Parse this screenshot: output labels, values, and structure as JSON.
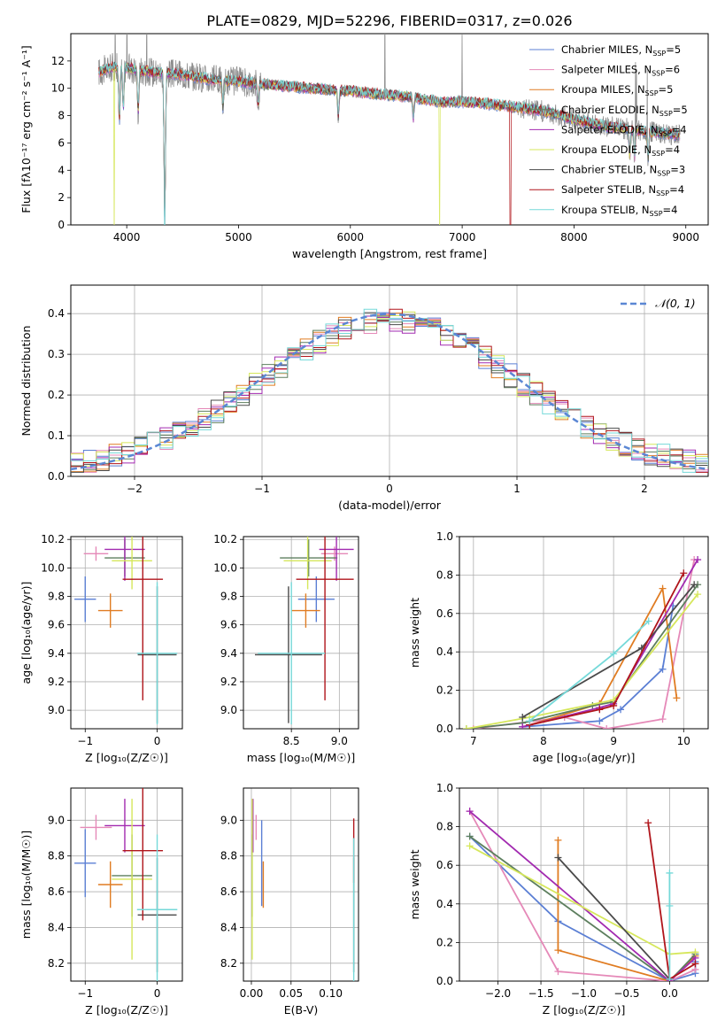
{
  "figure": {
    "title": "PLATE=0829, MJD=52296, FIBERID=0317, z=0.026"
  },
  "colors": {
    "Chabrier MILES": "#5b7fd4",
    "Salpeter MILES": "#e589b8",
    "Kroupa MILES": "#e07c22",
    "Chabrier ELODIE": "#5d7f5e",
    "Salpeter ELODIE": "#a22ab0",
    "Kroupa ELODIE": "#d6e75b",
    "Chabrier STELIB": "#4a4a4a",
    "Salpeter STELIB": "#b0151b",
    "Kroupa STELIB": "#75d9d9",
    "data": "#8c8c8c",
    "normal": "#5b87d4"
  },
  "chart_data": [
    {
      "id": "spectrum",
      "type": "line",
      "xlabel": "wavelength [Angstrom, rest frame]",
      "ylabel": "Flux [fλ10⁻¹⁷ erg cm⁻² s⁻¹ A⁻¹]",
      "xlim": [
        3500,
        9200
      ],
      "ylim": [
        0,
        14
      ],
      "xticks": [
        "4000",
        "5000",
        "6000",
        "7000",
        "8000",
        "9000"
      ],
      "yticks": [
        "0",
        "2",
        "4",
        "6",
        "8",
        "10",
        "12"
      ],
      "legend_position": "top-right",
      "legend": [
        "Chabrier MILES, N_SSP=5",
        "Salpeter MILES, N_SSP=6",
        "Kroupa MILES, N_SSP=5",
        "Chabrier ELODIE, N_SSP=5",
        "Salpeter ELODIE, N_SSP=4",
        "Kroupa ELODIE, N_SSP=4",
        "Chabrier STELIB, N_SSP=3",
        "Salpeter STELIB, N_SSP=4",
        "Kroupa STELIB, N_SSP=4"
      ],
      "continuum": {
        "x": [
          3750,
          3900,
          4000,
          4200,
          4500,
          4800,
          5000,
          5200,
          5500,
          5800,
          6000,
          6200,
          6500,
          6800,
          7000,
          7200,
          7400,
          7600,
          7800,
          8000,
          8300,
          8600,
          8900
        ],
        "y": [
          11.2,
          11.6,
          11.5,
          11.2,
          11.0,
          10.6,
          10.5,
          10.3,
          10.1,
          9.9,
          9.8,
          9.6,
          9.4,
          9.0,
          9.0,
          8.9,
          8.7,
          8.5,
          8.2,
          7.7,
          7.2,
          6.9,
          6.6
        ]
      },
      "absorption_dips": [
        {
          "x": 3934,
          "depth": 4
        },
        {
          "x": 3969,
          "depth": 3
        },
        {
          "x": 4102,
          "depth": 3
        },
        {
          "x": 4340,
          "depth": 11
        },
        {
          "x": 4861,
          "depth": 2
        },
        {
          "x": 5175,
          "depth": 1.5
        },
        {
          "x": 5893,
          "depth": 2
        },
        {
          "x": 6563,
          "depth": 1.5
        },
        {
          "x": 8498,
          "depth": 2
        },
        {
          "x": 8542,
          "depth": 2
        },
        {
          "x": 8662,
          "depth": 2
        }
      ],
      "model_dropouts": [
        {
          "series": "Kroupa ELODIE",
          "x": 3890
        },
        {
          "series": "Kroupa ELODIE",
          "x": 6800
        },
        {
          "series": "Salpeter STELIB",
          "x": 7430
        },
        {
          "series": "Kroupa STELIB",
          "x": 4340
        }
      ],
      "x_range_models": [
        3750,
        8950
      ]
    },
    {
      "id": "residuals",
      "type": "histogram",
      "xlabel": "(data-model)/error",
      "ylabel": "Normed distribution",
      "xlim": [
        -2.5,
        2.5
      ],
      "ylim": [
        0,
        0.47
      ],
      "xticks": [
        "−2",
        "−1",
        "0",
        "1",
        "2"
      ],
      "yticks": [
        "0.0",
        "0.1",
        "0.2",
        "0.3",
        "0.4"
      ],
      "bin_width": 0.1,
      "legend_position": "top-right",
      "legend": [
        "𝒩(0, 1)"
      ],
      "normal_mean": 0,
      "normal_sigma": 1
    },
    {
      "id": "age-vs-Z",
      "type": "errorbar",
      "xlabel": "Z [log₁₀(Z/Z☉)]",
      "ylabel": "age  [log₁₀(age/yr)]",
      "xlim": [
        -1.2,
        0.35
      ],
      "ylim": [
        8.87,
        10.22
      ],
      "xticks": [
        -1,
        0
      ],
      "yticks": [
        9.0,
        9.2,
        9.4,
        9.6,
        9.8,
        10.0,
        10.2
      ],
      "points": [
        {
          "series": "Chabrier MILES",
          "x": -1.0,
          "y": 9.78,
          "xerr": 0.15,
          "yerr": 0.16
        },
        {
          "series": "Salpeter MILES",
          "x": -0.85,
          "y": 10.1,
          "xerr": 0.17,
          "yerr": 0.05
        },
        {
          "series": "Kroupa MILES",
          "x": -0.65,
          "y": 9.7,
          "xerr": 0.17,
          "yerr": 0.12
        },
        {
          "series": "Chabrier ELODIE",
          "x": -0.45,
          "y": 10.07,
          "xerr": 0.28,
          "yerr": 0.13
        },
        {
          "series": "Salpeter ELODIE",
          "x": -0.45,
          "y": 10.13,
          "xerr": 0.28,
          "yerr": 0.22
        },
        {
          "series": "Kroupa ELODIE",
          "x": -0.35,
          "y": 10.05,
          "xerr": 0.28,
          "yerr": 0.2
        },
        {
          "series": "Chabrier STELIB",
          "x": 0.0,
          "y": 9.39,
          "xerr": 0.27,
          "yerr": 0.48
        },
        {
          "series": "Salpeter STELIB",
          "x": -0.2,
          "y": 9.92,
          "xerr": 0.28,
          "yerr": 0.85
        },
        {
          "series": "Kroupa STELIB",
          "x": 0.0,
          "y": 9.4,
          "xerr": 0.28,
          "yerr": 0.5
        }
      ]
    },
    {
      "id": "age-vs-mass",
      "type": "errorbar",
      "xlabel": "mass [log₁₀(M/M☉)]",
      "ylabel": "",
      "xlim": [
        8.0,
        9.2
      ],
      "ylim": [
        8.87,
        10.22
      ],
      "xticks": [
        8.5,
        9.0
      ],
      "yticks": [
        9.0,
        9.2,
        9.4,
        9.6,
        9.8,
        10.0,
        10.2
      ],
      "points": [
        {
          "series": "Chabrier MILES",
          "x": 8.76,
          "y": 9.78,
          "xerr": 0.19,
          "yerr": 0.16
        },
        {
          "series": "Salpeter MILES",
          "x": 8.95,
          "y": 10.1,
          "xerr": 0.14,
          "yerr": 0.05
        },
        {
          "series": "Kroupa MILES",
          "x": 8.65,
          "y": 9.7,
          "xerr": 0.15,
          "yerr": 0.12
        },
        {
          "series": "Chabrier ELODIE",
          "x": 8.68,
          "y": 10.07,
          "xerr": 0.3,
          "yerr": 0.13
        },
        {
          "series": "Salpeter ELODIE",
          "x": 8.97,
          "y": 10.13,
          "xerr": 0.18,
          "yerr": 0.22
        },
        {
          "series": "Kroupa ELODIE",
          "x": 8.67,
          "y": 10.05,
          "xerr": 0.25,
          "yerr": 0.2
        },
        {
          "series": "Chabrier STELIB",
          "x": 8.47,
          "y": 9.39,
          "xerr": 0.35,
          "yerr": 0.48
        },
        {
          "series": "Salpeter STELIB",
          "x": 8.85,
          "y": 9.92,
          "xerr": 0.3,
          "yerr": 0.85
        },
        {
          "series": "Kroupa STELIB",
          "x": 8.5,
          "y": 9.4,
          "xerr": 0.35,
          "yerr": 0.5
        }
      ]
    },
    {
      "id": "weight-vs-age",
      "type": "line",
      "xlabel": "age  [log₁₀(age/yr)]",
      "ylabel": "mass weight",
      "xlim": [
        6.8,
        10.35
      ],
      "ylim": [
        0,
        1.0
      ],
      "xticks": [
        7,
        8,
        9,
        10
      ],
      "yticks": [
        0.0,
        0.2,
        0.4,
        0.6,
        0.8,
        1.0
      ],
      "series": [
        {
          "name": "Chabrier MILES",
          "x": [
            7.7,
            8.8,
            9.1,
            9.7,
            9.85
          ],
          "y": [
            0.01,
            0.04,
            0.1,
            0.31,
            0.64
          ]
        },
        {
          "name": "Salpeter MILES",
          "x": [
            7.0,
            8.3,
            8.9,
            9.7,
            10.15
          ],
          "y": [
            0.0,
            0.06,
            0.0,
            0.05,
            0.88
          ]
        },
        {
          "name": "Kroupa MILES",
          "x": [
            7.8,
            8.8,
            9.7,
            9.9
          ],
          "y": [
            0.02,
            0.13,
            0.73,
            0.16
          ]
        },
        {
          "name": "Chabrier ELODIE",
          "x": [
            6.9,
            7.7,
            8.7,
            9.0,
            10.2
          ],
          "y": [
            0.0,
            0.03,
            0.12,
            0.14,
            0.75
          ]
        },
        {
          "name": "Salpeter ELODIE",
          "x": [
            7.7,
            8.8,
            9.0,
            10.2
          ],
          "y": [
            0.01,
            0.11,
            0.13,
            0.88
          ]
        },
        {
          "name": "Kroupa ELODIE",
          "x": [
            6.9,
            7.8,
            9.0,
            10.2
          ],
          "y": [
            0.0,
            0.06,
            0.15,
            0.7
          ]
        },
        {
          "name": "Chabrier STELIB",
          "x": [
            7.7,
            9.4,
            10.15
          ],
          "y": [
            0.06,
            0.42,
            0.75
          ]
        },
        {
          "name": "Salpeter STELIB",
          "x": [
            7.8,
            8.8,
            9.0,
            10.0
          ],
          "y": [
            0.02,
            0.1,
            0.12,
            0.81
          ]
        },
        {
          "name": "Kroupa STELIB",
          "x": [
            7.8,
            9.0,
            9.5
          ],
          "y": [
            0.04,
            0.39,
            0.56
          ]
        }
      ]
    },
    {
      "id": "mass-vs-Z",
      "type": "errorbar",
      "xlabel": "Z [log₁₀(Z/Z☉)]",
      "ylabel": "mass [log₁₀(M/M☉)]",
      "xlim": [
        -1.2,
        0.35
      ],
      "ylim": [
        8.1,
        9.18
      ],
      "xticks": [
        -1,
        0
      ],
      "yticks": [
        8.2,
        8.4,
        8.6,
        8.8,
        9.0
      ],
      "points": [
        {
          "series": "Chabrier MILES",
          "x": -1.0,
          "y": 8.76,
          "xerr": 0.15,
          "yerr": 0.19
        },
        {
          "series": "Salpeter MILES",
          "x": -0.85,
          "y": 8.96,
          "xerr": 0.22,
          "yerr": 0.07
        },
        {
          "series": "Kroupa MILES",
          "x": -0.65,
          "y": 8.64,
          "xerr": 0.17,
          "yerr": 0.13
        },
        {
          "series": "Chabrier ELODIE",
          "x": -0.35,
          "y": 8.69,
          "xerr": 0.28,
          "yerr": 0.23
        },
        {
          "series": "Salpeter ELODIE",
          "x": -0.45,
          "y": 8.97,
          "xerr": 0.28,
          "yerr": 0.15
        },
        {
          "series": "Kroupa ELODIE",
          "x": -0.35,
          "y": 8.67,
          "xerr": 0.28,
          "yerr": 0.45
        },
        {
          "series": "Chabrier STELIB",
          "x": 0.0,
          "y": 8.47,
          "xerr": 0.27,
          "yerr": 0.32
        },
        {
          "series": "Salpeter STELIB",
          "x": -0.2,
          "y": 8.83,
          "xerr": 0.28,
          "yerr": 0.39
        },
        {
          "series": "Kroupa STELIB",
          "x": 0.0,
          "y": 8.5,
          "xerr": 0.28,
          "yerr": 0.42
        }
      ]
    },
    {
      "id": "mass-vs-EBV",
      "type": "errorbar",
      "xlabel": "E(B-V)",
      "ylabel": "",
      "xlim": [
        -0.01,
        0.135
      ],
      "ylim": [
        8.1,
        9.18
      ],
      "xticks": [
        "0.00",
        "0.05",
        "0.10"
      ],
      "yticks": [
        8.2,
        8.4,
        8.6,
        8.8,
        9.0
      ],
      "points": [
        {
          "series": "Chabrier MILES",
          "x": 0.013,
          "y": 8.76,
          "yerr": 0.24
        },
        {
          "series": "Salpeter MILES",
          "x": 0.006,
          "y": 8.96,
          "yerr": 0.07
        },
        {
          "series": "Kroupa MILES",
          "x": 0.015,
          "y": 8.64,
          "yerr": 0.13
        },
        {
          "series": "Chabrier ELODIE",
          "x": 0.001,
          "y": 8.69,
          "yerr": 0.23
        },
        {
          "series": "Salpeter ELODIE",
          "x": 0.002,
          "y": 8.97,
          "yerr": 0.15
        },
        {
          "series": "Kroupa ELODIE",
          "x": 0.001,
          "y": 8.67,
          "yerr": 0.45
        },
        {
          "series": "Chabrier STELIB",
          "x": 0.129,
          "y": 8.47,
          "yerr": 0.32
        },
        {
          "series": "Salpeter STELIB",
          "x": 0.129,
          "y": 8.83,
          "yerr": 0.18
        },
        {
          "series": "Kroupa STELIB",
          "x": 0.129,
          "y": 8.5,
          "yerr": 0.4
        }
      ]
    },
    {
      "id": "weight-vs-Z",
      "type": "line",
      "xlabel": "Z [log₁₀(Z/Z☉)]",
      "ylabel": "mass weight",
      "xlim": [
        -2.45,
        0.45
      ],
      "ylim": [
        0,
        1.0
      ],
      "xticks": [
        "−2.0",
        "−1.5",
        "−1.0",
        "−0.5",
        "0.0"
      ],
      "yticks": [
        0.0,
        0.2,
        0.4,
        0.6,
        0.8,
        1.0
      ],
      "series": [
        {
          "name": "Chabrier MILES",
          "x": [
            -2.33,
            -1.3,
            0.0,
            0.3,
            0.3
          ],
          "y": [
            0.75,
            0.31,
            0.0,
            0.04,
            0.1
          ]
        },
        {
          "name": "Salpeter MILES",
          "x": [
            -2.33,
            -1.3,
            0.0,
            0.3
          ],
          "y": [
            0.88,
            0.05,
            0.0,
            0.06
          ]
        },
        {
          "name": "Kroupa MILES",
          "x": [
            -1.3,
            -1.3,
            0.0,
            0.3
          ],
          "y": [
            0.73,
            0.16,
            0.0,
            0.13
          ]
        },
        {
          "name": "Chabrier ELODIE",
          "x": [
            -2.33,
            0.0,
            0.3
          ],
          "y": [
            0.75,
            0.0,
            0.14
          ]
        },
        {
          "name": "Salpeter ELODIE",
          "x": [
            -2.33,
            0.0,
            0.3
          ],
          "y": [
            0.88,
            0.0,
            0.12
          ]
        },
        {
          "name": "Kroupa ELODIE",
          "x": [
            -2.33,
            0.0,
            0.3
          ],
          "y": [
            0.7,
            0.14,
            0.15
          ]
        },
        {
          "name": "Chabrier STELIB",
          "x": [
            -1.3,
            0.0
          ],
          "y": [
            0.64,
            0.01
          ]
        },
        {
          "name": "Salpeter STELIB",
          "x": [
            -0.25,
            0.0,
            0.3
          ],
          "y": [
            0.82,
            0.01,
            0.09
          ]
        },
        {
          "name": "Kroupa STELIB",
          "x": [
            0.0,
            0.0,
            0.0
          ],
          "y": [
            0.56,
            0.39,
            0.01
          ]
        }
      ]
    }
  ]
}
